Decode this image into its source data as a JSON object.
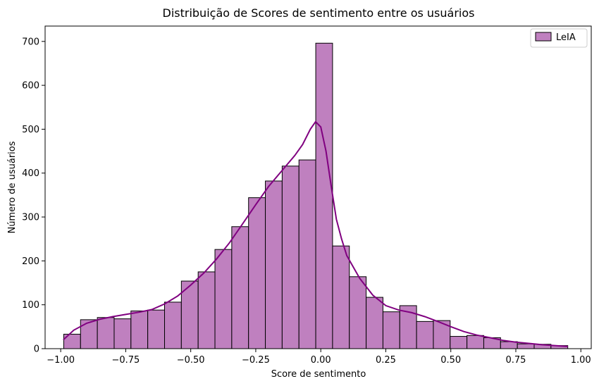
{
  "chart_data": {
    "type": "histogram",
    "title": "Distribuição de Scores de sentimento entre os usuários",
    "xlabel": "Score de sentimento",
    "ylabel": "Número de usuários",
    "xlim": [
      -1.06,
      1.04
    ],
    "ylim": [
      0,
      735
    ],
    "xticks": [
      -1.0,
      -0.75,
      -0.5,
      -0.25,
      0.0,
      0.25,
      0.5,
      0.75,
      1.0
    ],
    "xtick_labels": [
      "−1.00",
      "−0.75",
      "−0.50",
      "−0.25",
      "0.00",
      "0.25",
      "0.50",
      "0.75",
      "1.00"
    ],
    "yticks": [
      0,
      100,
      200,
      300,
      400,
      500,
      600,
      700
    ],
    "ytick_labels": [
      "0",
      "100",
      "200",
      "300",
      "400",
      "500",
      "600",
      "700"
    ],
    "grid": false,
    "legend_position": "top-right",
    "series": [
      {
        "name": "LeIA",
        "color": "#800080",
        "bar_color": "#bf80bf",
        "edge_color": "#000000",
        "bin_start": -0.9883,
        "bin_width": 0.0646,
        "counts": [
          33,
          66,
          71,
          68,
          86,
          88,
          106,
          154,
          175,
          226,
          278,
          344,
          382,
          416,
          430,
          696,
          234,
          164,
          117,
          84,
          98,
          62,
          64,
          28,
          30,
          25,
          16,
          11,
          10,
          7
        ],
        "kde": [
          [
            -0.99,
            20
          ],
          [
            -0.95,
            42
          ],
          [
            -0.9,
            58
          ],
          [
            -0.85,
            67
          ],
          [
            -0.8,
            73
          ],
          [
            -0.75,
            78
          ],
          [
            -0.7,
            83
          ],
          [
            -0.65,
            89
          ],
          [
            -0.6,
            102
          ],
          [
            -0.55,
            120
          ],
          [
            -0.5,
            145
          ],
          [
            -0.45,
            172
          ],
          [
            -0.4,
            205
          ],
          [
            -0.35,
            242
          ],
          [
            -0.3,
            285
          ],
          [
            -0.25,
            328
          ],
          [
            -0.2,
            370
          ],
          [
            -0.15,
            405
          ],
          [
            -0.1,
            440
          ],
          [
            -0.07,
            465
          ],
          [
            -0.04,
            500
          ],
          [
            -0.02,
            517
          ],
          [
            0.0,
            505
          ],
          [
            0.02,
            450
          ],
          [
            0.04,
            370
          ],
          [
            0.06,
            295
          ],
          [
            0.08,
            250
          ],
          [
            0.1,
            212
          ],
          [
            0.15,
            160
          ],
          [
            0.2,
            122
          ],
          [
            0.25,
            98
          ],
          [
            0.3,
            88
          ],
          [
            0.35,
            82
          ],
          [
            0.4,
            73
          ],
          [
            0.45,
            62
          ],
          [
            0.5,
            50
          ],
          [
            0.55,
            39
          ],
          [
            0.6,
            31
          ],
          [
            0.65,
            25
          ],
          [
            0.7,
            19
          ],
          [
            0.75,
            15
          ],
          [
            0.8,
            12
          ],
          [
            0.85,
            9
          ],
          [
            0.9,
            7
          ],
          [
            0.95,
            5
          ]
        ]
      }
    ]
  }
}
